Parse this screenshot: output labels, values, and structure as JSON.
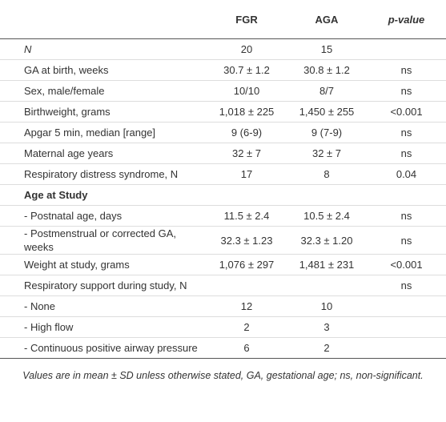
{
  "table": {
    "columns": [
      "FGR",
      "AGA",
      "p-value"
    ],
    "rows": [
      {
        "label": "N",
        "fgr": "20",
        "aga": "15"
      },
      {
        "label": "GA at birth, weeks",
        "fgr": "30.7 ± 1.2",
        "aga": "30.8 ± 1.2",
        "p": "ns"
      },
      {
        "label": "Sex, male/female",
        "fgr": "10/10",
        "aga": "8/7",
        "p": "ns"
      },
      {
        "label": "Birthweight, grams",
        "fgr": "1,018 ± 225",
        "aga": "1,450 ± 255",
        "p": "<0.001"
      },
      {
        "label": "Apgar 5 min, median [range]",
        "fgr": "9 (6-9)",
        "aga": "9 (7-9)",
        "p": "ns"
      },
      {
        "label": "Maternal age years",
        "fgr": "32 ± 7",
        "aga": "32 ± 7",
        "p": "ns"
      },
      {
        "label": "Respiratory distress syndrome, N",
        "fgr": "17",
        "aga": "8",
        "p": "0.04"
      },
      {
        "label": "Age at Study",
        "section": true
      },
      {
        "label": "- Postnatal age, days",
        "fgr": "11.5 ± 2.4",
        "aga": "10.5 ± 2.4",
        "p": "ns"
      },
      {
        "label": "- Postmenstrual or corrected GA, weeks",
        "fgr": "32.3 ± 1.23",
        "aga": "32.3 ± 1.20",
        "p": "ns"
      },
      {
        "label": "Weight at study, grams",
        "fgr": "1,076 ± 297",
        "aga": "1,481 ± 231",
        "p": "<0.001"
      },
      {
        "label": "Respiratory support during study, N",
        "p": "ns"
      },
      {
        "label": "- None",
        "fgr": "12",
        "aga": "10"
      },
      {
        "label": "- High flow",
        "fgr": "2",
        "aga": "3"
      },
      {
        "label": "- Continuous positive airway pressure",
        "fgr": "6",
        "aga": "2"
      }
    ]
  },
  "footnote": "Values are in mean ± SD unless otherwise stated, GA, gestational age; ns, non-significant."
}
